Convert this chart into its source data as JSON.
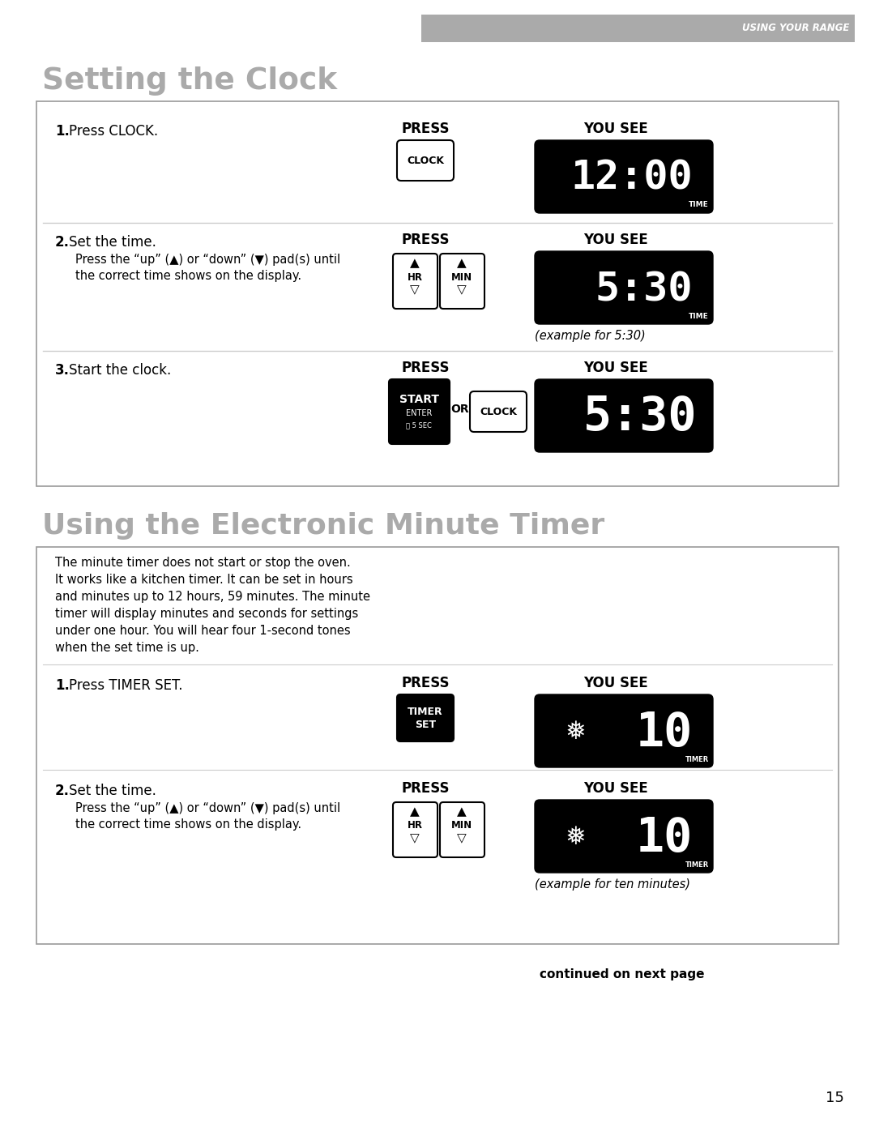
{
  "page_bg": "#ffffff",
  "header_bg": "#aaaaaa",
  "header_text": "USING YOUR RANGE",
  "section1_title": "Setting the Clock",
  "section2_title": "Using the Electronic Minute Timer",
  "title_color": "#aaaaaa",
  "press_label": "PRESS",
  "yousee_label": "YOU SEE",
  "step1_text": "1.",
  "step1_bold": "Press CLOCK.",
  "step1_plain": "",
  "step2_text": "2.",
  "step2_bold": "Set the time.",
  "step2_sub": "Press the “up” (▲) or “down” (▼) pad(s) until\nthe correct time shows on the display.",
  "step3_text": "3.",
  "step3_bold": "Start the clock.",
  "example530": "(example for 5:30)",
  "timer_intro": "The minute timer does not start or stop the oven.\nIt works like a kitchen timer. It can be set in hours\nand minutes up to 12 hours, 59 minutes. The minute\ntimer will display minutes and seconds for settings\nunder one hour. You will hear four 1-second tones\nwhen the set time is up.",
  "timer_step1_text": "1.",
  "timer_step1_bold": "Press TIMER SET.",
  "timer_step2_text": "2.",
  "timer_step2_bold": "Set the time.",
  "timer_step2_sub": "Press the “up” (▲) or “down” (▼) pad(s) until\nthe correct time shows on the display.",
  "example_ten": "(example for ten minutes)",
  "continued_text": "continued on next page",
  "page_num": "15"
}
